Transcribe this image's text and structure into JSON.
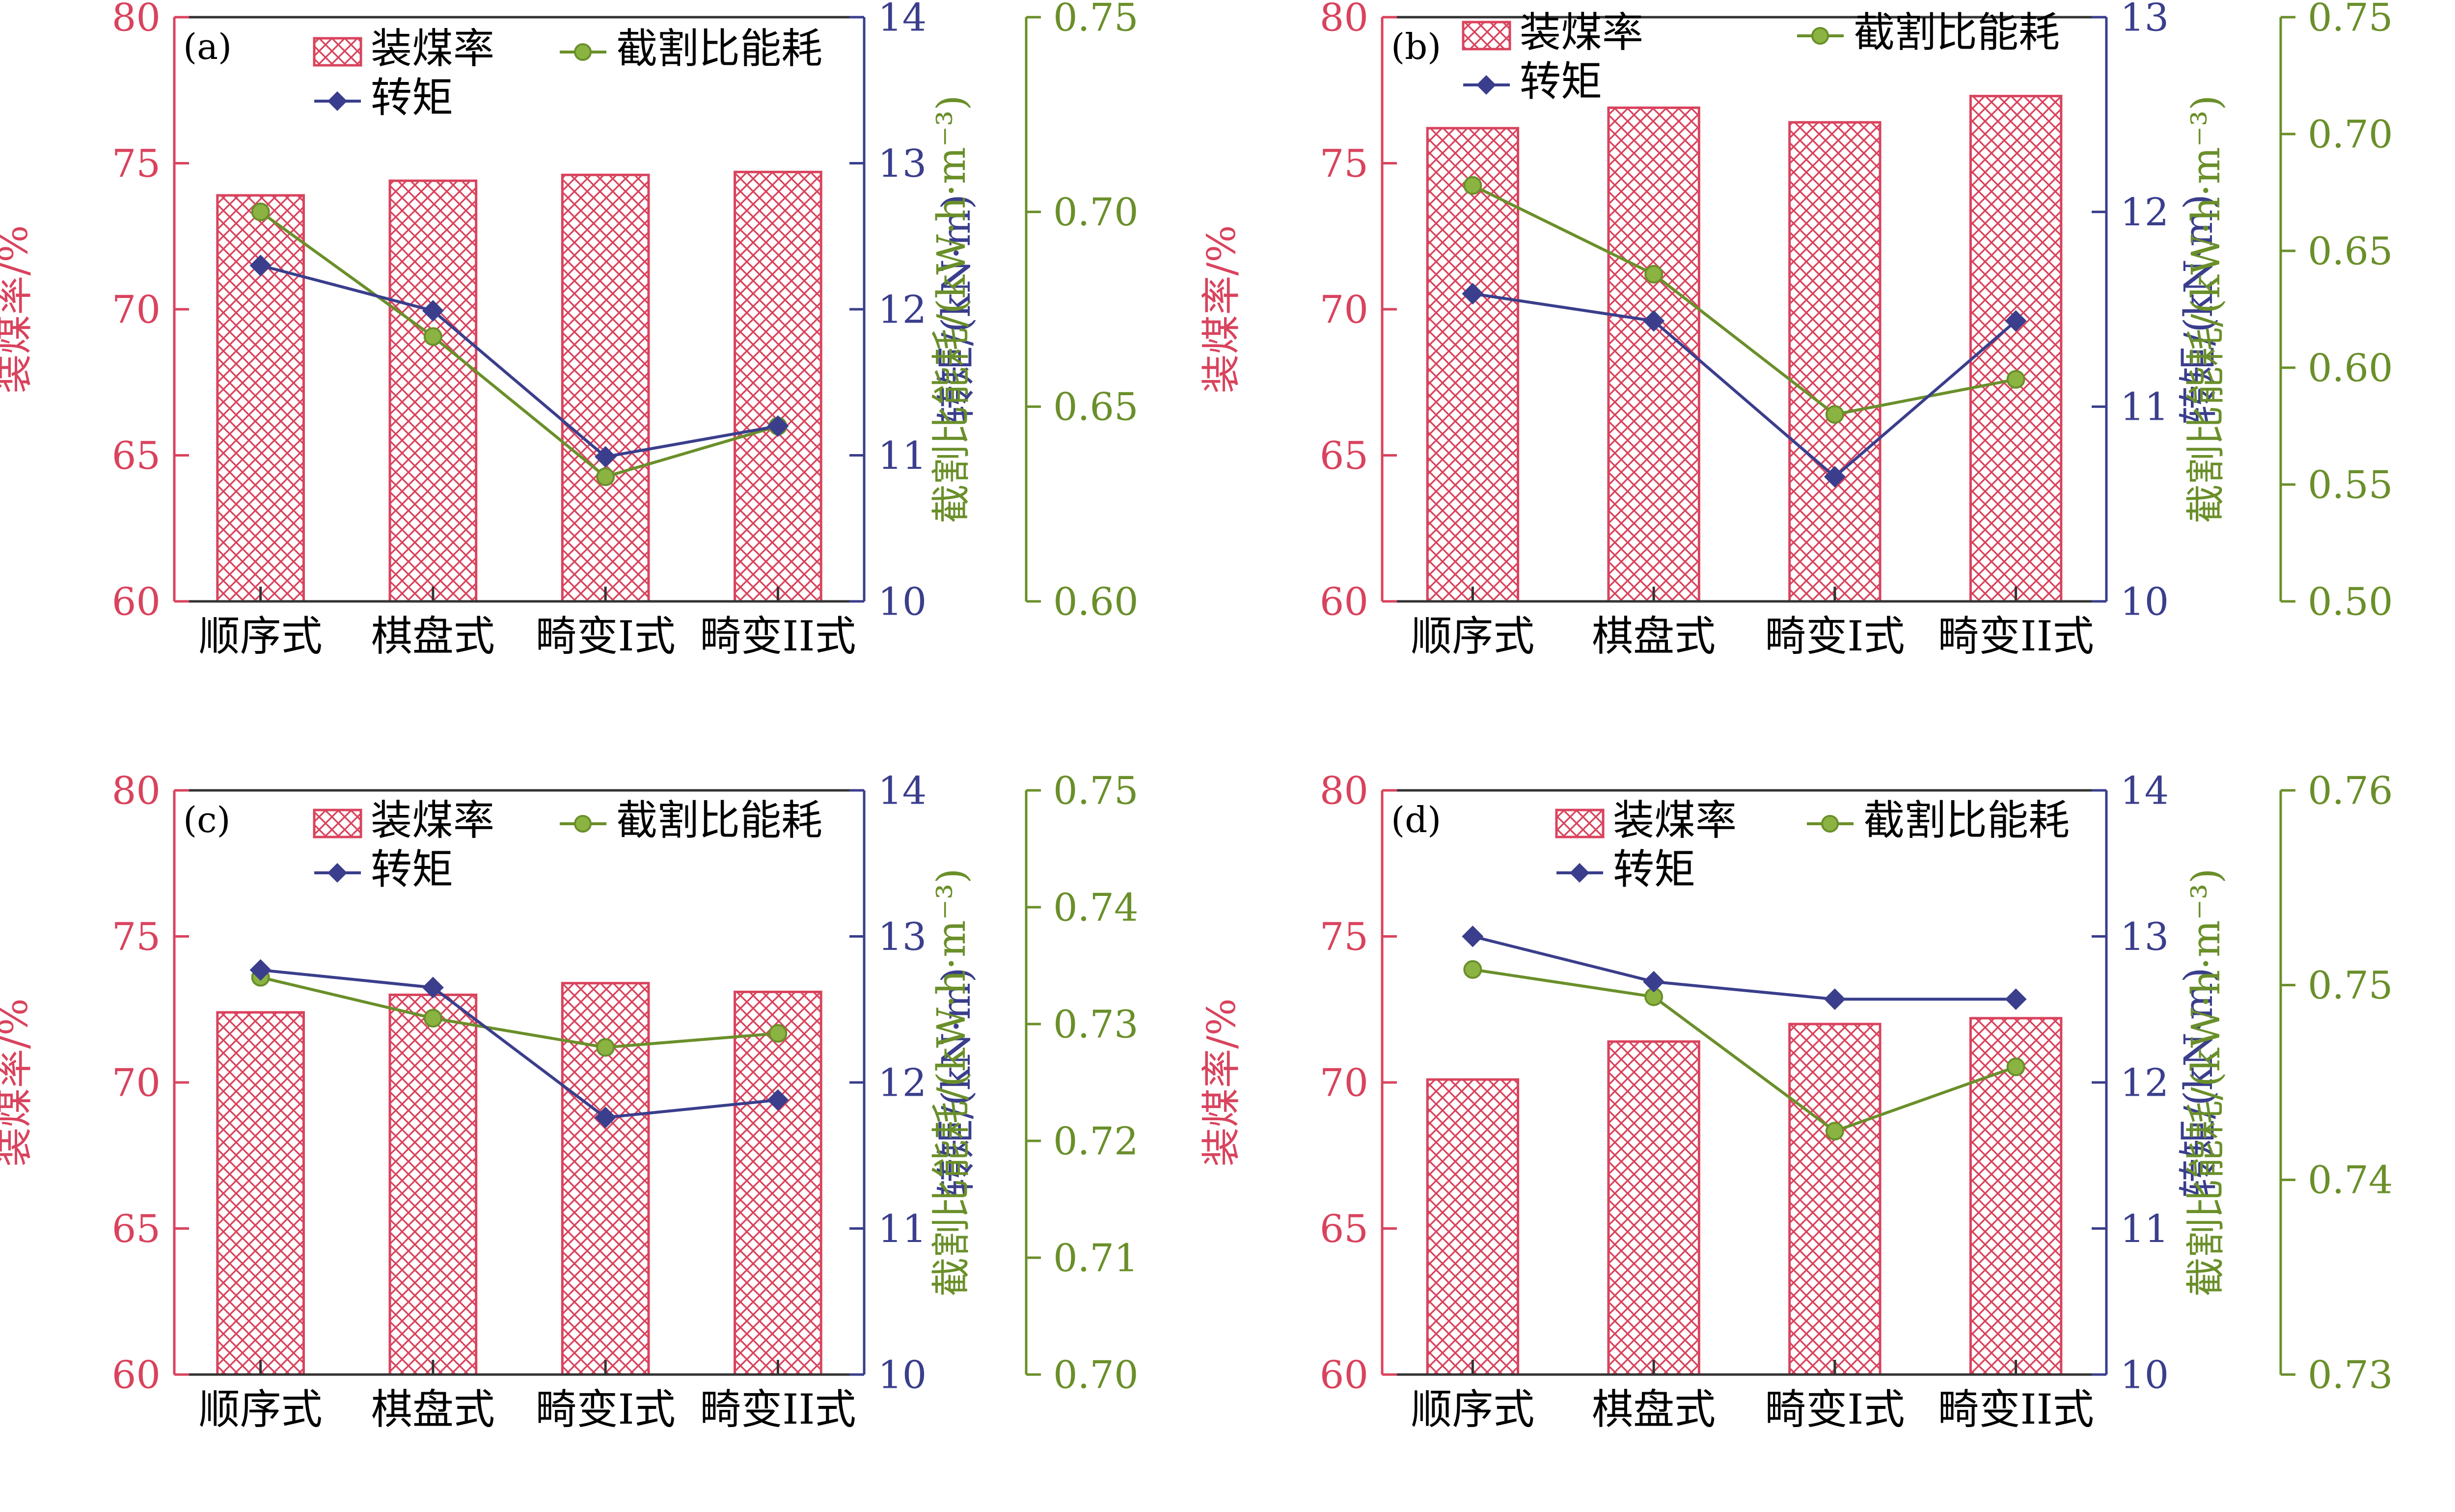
{
  "colors": {
    "bar": "#d9435d",
    "torque": "#3a3e8c",
    "energy": "#6a8f2a",
    "axis": "#333333"
  },
  "legend": {
    "bar": "装煤率",
    "torque": "转矩",
    "energy": "截割比能耗"
  },
  "chart_data": [
    {
      "panel": "(a)",
      "type": "bar",
      "categories": [
        "顺序式",
        "棋盘式",
        "畸变I式",
        "畸变II式"
      ],
      "ylabel_left": "装煤率/%",
      "ylabel_right1": "转矩/(kN·m)",
      "ylabel_right2": "截割比能耗/(kW·h·m⁻³)",
      "ylim_left": [
        60,
        80
      ],
      "yticks_left": [
        "60",
        "65",
        "70",
        "75",
        "80"
      ],
      "ylim_right1": [
        10,
        14
      ],
      "yticks_right1": [
        "10",
        "11",
        "12",
        "13",
        "14"
      ],
      "ylim_right2": [
        0.6,
        0.75
      ],
      "yticks_right2": [
        "0.60",
        "0.65",
        "0.70",
        "0.75"
      ],
      "series": [
        {
          "name": "装煤率",
          "type": "bar",
          "axis": "left",
          "values": [
            73.9,
            74.4,
            74.6,
            74.7
          ]
        },
        {
          "name": "转矩",
          "type": "line",
          "axis": "right1",
          "values": [
            12.3,
            11.99,
            10.99,
            11.2
          ]
        },
        {
          "name": "截割比能耗",
          "type": "line",
          "axis": "right2",
          "values": [
            0.7,
            0.668,
            0.632,
            0.645
          ]
        }
      ]
    },
    {
      "panel": "(b)",
      "type": "bar",
      "categories": [
        "顺序式",
        "棋盘式",
        "畸变I式",
        "畸变II式"
      ],
      "ylabel_left": "装煤率/%",
      "ylabel_right1": "转矩/(kN·m)",
      "ylabel_right2": "截割比能耗/(kW·h·m⁻³)",
      "ylim_left": [
        60,
        80
      ],
      "yticks_left": [
        "60",
        "65",
        "70",
        "75",
        "80"
      ],
      "ylim_right1": [
        10,
        13
      ],
      "yticks_right1": [
        "10",
        "11",
        "12",
        "13"
      ],
      "ylim_right2": [
        0.5,
        0.75
      ],
      "yticks_right2": [
        "0.50",
        "0.55",
        "0.60",
        "0.65",
        "0.70",
        "0.75"
      ],
      "series": [
        {
          "name": "装煤率",
          "type": "bar",
          "axis": "left",
          "values": [
            76.2,
            76.9,
            76.4,
            77.3
          ]
        },
        {
          "name": "转矩",
          "type": "line",
          "axis": "right1",
          "values": [
            11.58,
            11.44,
            10.64,
            11.44
          ]
        },
        {
          "name": "截割比能耗",
          "type": "line",
          "axis": "right2",
          "values": [
            0.678,
            0.64,
            0.58,
            0.595
          ]
        }
      ]
    },
    {
      "panel": "(c)",
      "type": "bar",
      "categories": [
        "顺序式",
        "棋盘式",
        "畸变I式",
        "畸变II式"
      ],
      "ylabel_left": "装煤率/%",
      "ylabel_right1": "转矩/(kN·m)",
      "ylabel_right2": "截割比能耗/(kW·h·m⁻³)",
      "ylim_left": [
        60,
        80
      ],
      "yticks_left": [
        "60",
        "65",
        "70",
        "75",
        "80"
      ],
      "ylim_right1": [
        10,
        14
      ],
      "yticks_right1": [
        "10",
        "11",
        "12",
        "13",
        "14"
      ],
      "ylim_right2": [
        0.7,
        0.75
      ],
      "yticks_right2": [
        "0.70",
        "0.71",
        "0.72",
        "0.73",
        "0.74",
        "0.75"
      ],
      "series": [
        {
          "name": "装煤率",
          "type": "bar",
          "axis": "left",
          "values": [
            72.4,
            73.0,
            73.4,
            73.1
          ]
        },
        {
          "name": "转矩",
          "type": "line",
          "axis": "right1",
          "values": [
            12.77,
            12.65,
            11.76,
            11.88
          ]
        },
        {
          "name": "截割比能耗",
          "type": "line",
          "axis": "right2",
          "values": [
            0.734,
            0.7305,
            0.728,
            0.7292
          ]
        }
      ]
    },
    {
      "panel": "(d)",
      "type": "bar",
      "categories": [
        "顺序式",
        "棋盘式",
        "畸变I式",
        "畸变II式"
      ],
      "ylabel_left": "装煤率/%",
      "ylabel_right1": "转矩/(kN·m)",
      "ylabel_right2": "截割比能耗/(kW·h·m⁻³)",
      "ylim_left": [
        60,
        80
      ],
      "yticks_left": [
        "60",
        "65",
        "70",
        "75",
        "80"
      ],
      "ylim_right1": [
        10,
        14
      ],
      "yticks_right1": [
        "10",
        "11",
        "12",
        "13",
        "14"
      ],
      "ylim_right2": [
        0.73,
        0.76
      ],
      "yticks_right2": [
        "0.73",
        "0.74",
        "0.75",
        "0.76"
      ],
      "series": [
        {
          "name": "装煤率",
          "type": "bar",
          "axis": "left",
          "values": [
            70.1,
            71.4,
            72.0,
            72.2
          ]
        },
        {
          "name": "转矩",
          "type": "line",
          "axis": "right1",
          "values": [
            13.0,
            12.69,
            12.57,
            12.57
          ]
        },
        {
          "name": "截割比能耗",
          "type": "line",
          "axis": "right2",
          "values": [
            0.7508,
            0.7494,
            0.7425,
            0.7458
          ]
        }
      ]
    }
  ]
}
